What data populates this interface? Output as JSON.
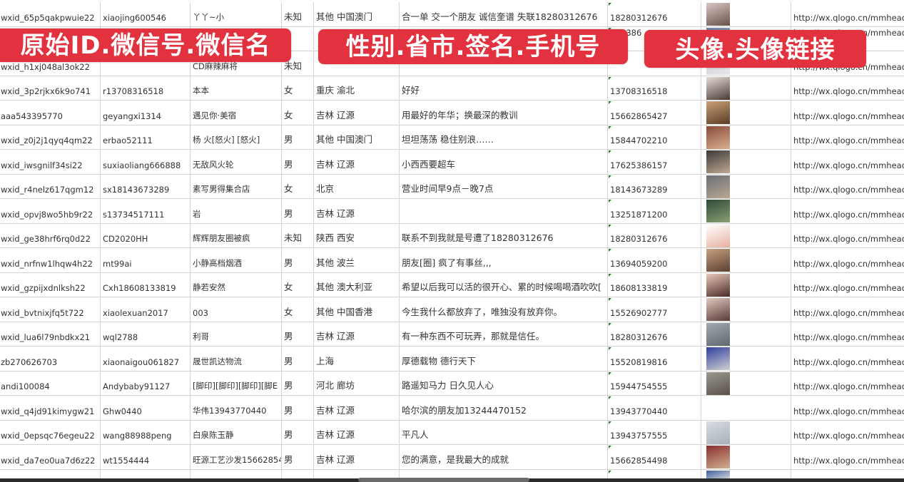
{
  "banners": {
    "ids": "原始ID.微信号.微信名",
    "profile": "性别.省市.签名.手机号",
    "avatar": "头像.头像链接"
  },
  "colors": {
    "banner": "#e2323f",
    "grid": "#d4d4d4"
  },
  "rows": [
    {
      "id": "wxid_65p5qakpwuie22",
      "wechat": "xiaojing600546",
      "name": "丫丫~小",
      "gender": "未知",
      "region": "其他 中国澳门",
      "sig": "合一单 交一个朋友 诚信奎谱 失联18280312676",
      "phone": "18280312676",
      "avatar": [
        "#d9c7c4",
        "#6b5048"
      ],
      "link": "http://wx.qlogo.cn/mmhead"
    },
    {
      "id": "",
      "wechat": "",
      "name": "",
      "gender": "",
      "region": "",
      "sig": "",
      "phone": "5386",
      "avatar": [
        "#6c7da8",
        "#c9cbd6"
      ],
      "link": "http://wx.qlogo.cn/mmhead"
    },
    {
      "id": "wxid_h1xj048al3ok22",
      "wechat": "",
      "name": "CD麻辣麻将",
      "gender": "未知",
      "region": "",
      "sig": "",
      "phone": "",
      "avatar": [
        "#c8c8d0",
        "#e6e6ea"
      ],
      "link": "http://wx.qlogo.cn/mmhead"
    },
    {
      "id": "wxid_3p2rjkx6k9o741",
      "wechat": "r13708316518",
      "name": "本本",
      "gender": "女",
      "region": "重庆 渝北",
      "sig": "好好",
      "phone": "13708316518",
      "avatar": [
        "#e6dcd6",
        "#4a3a34"
      ],
      "link": "http://wx.qlogo.cn/mmhead"
    },
    {
      "id": "aaa543395770",
      "wechat": "geyangxi1314",
      "name": "遇见你·美宿",
      "gender": "女",
      "region": "吉林 辽源",
      "sig": "用最好的年华；换最深的教训",
      "phone": "15662865427",
      "avatar": [
        "#c9a27c",
        "#5b3b22"
      ],
      "link": "http://wx.qlogo.cn/mmhead"
    },
    {
      "id": "wxid_z0j2j1qyq4qm22",
      "wechat": "erbao52111",
      "name": "杨 火[怒火] [怒火]",
      "gender": "男",
      "region": "其他 中国澳门",
      "sig": "坦坦荡荡 稳住别浪……",
      "phone": "15844702210",
      "avatar": [
        "#8a4a3a",
        "#d8b090"
      ],
      "link": "http://wx.qlogo.cn/mmhead"
    },
    {
      "id": "wxid_iwsgnilf34si22",
      "wechat": "suxiaoliang666888",
      "name": "无敌风火轮",
      "gender": "男",
      "region": "吉林 辽源",
      "sig": "小西西要超车",
      "phone": "17625386157",
      "avatar": [
        "#3a3a3a",
        "#c0a890"
      ],
      "link": "http://wx.qlogo.cn/mmhead"
    },
    {
      "id": "wxid_r4nelz617qgm12",
      "wechat": "sx18143673289",
      "name": "素写男得集合店",
      "gender": "女",
      "region": "北京",
      "sig": "营业时间早9点－晚7点",
      "phone": "18143673289",
      "avatar": [
        "#6a6f78",
        "#b8a890"
      ],
      "link": "http://wx.qlogo.cn/mmhead"
    },
    {
      "id": "wxid_opvj8wo5hb9r22",
      "wechat": "s13734517111",
      "name": "岩",
      "gender": "男",
      "region": "吉林 辽源",
      "sig": "",
      "phone": "13251871200",
      "avatar": [
        "#2f4a3a",
        "#8aa070"
      ],
      "link": "http://wx.qlogo.cn/mmhead"
    },
    {
      "id": "wxid_ge38hrf6rq0d22",
      "wechat": "CD2020HH",
      "name": "辉辉朋友圈被疯",
      "gender": "未知",
      "region": "陕西 西安",
      "sig": "联系不到我就是号遭了18280312676",
      "phone": "18280312676",
      "avatar": [
        "#ffffff",
        "#e8b0a0"
      ],
      "link": "http://wx.qlogo.cn/mmhead"
    },
    {
      "id": "wxid_nrfnw1lhqw4h22",
      "wechat": "mt99ai",
      "name": "小静高档烟酒",
      "gender": "男",
      "region": "其他 波兰",
      "sig": "朋友[圈] 疯了有事丝,,,",
      "phone": "13694059200",
      "avatar": [
        "#c9a080",
        "#5a4030"
      ],
      "link": "http://wx.qlogo.cn/mmhead"
    },
    {
      "id": "wxid_gzpijxdnlksh22",
      "wechat": "Cxh18608133819",
      "name": "静若安然",
      "gender": "女",
      "region": "其他 澳大利亚",
      "sig": "希望以后我可以活的很开心、累的时候喝喝酒吹吹[",
      "phone": "18608133819",
      "avatar": [
        "#e8c8b8",
        "#4a2a28"
      ],
      "link": "http://wx.qlogo.cn/mmhead"
    },
    {
      "id": "wxid_bvtnixjfq5t722",
      "wechat": "xiaolexuan2017",
      "name": "003",
      "gender": "女",
      "region": "其他 中国香港",
      "sig": "今生我什么都放弃了，唯独没有放弃你。",
      "phone": "15526902777",
      "avatar": [
        "#e0c8c0",
        "#5a3a36"
      ],
      "link": "http://wx.qlogo.cn/mmhead"
    },
    {
      "id": "wxid_lua6l79nbdkx21",
      "wechat": "wql2788",
      "name": "利哥",
      "gender": "男",
      "region": "吉林 辽源",
      "sig": "有一种东西不可玩弄，那就是信任。",
      "phone": "18280312676",
      "avatar": [
        "#a0a8b0",
        "#606870"
      ],
      "link": "http://wx.qlogo.cn/mmhead"
    },
    {
      "id": "zb270626703",
      "wechat": "xiaonaigou061827",
      "name": "晟世凯达物流",
      "gender": "男",
      "region": "上海",
      "sig": "厚德载物 德行天下",
      "phone": "15520819816",
      "avatar": [
        "#3040a0",
        "#d0d0d0"
      ],
      "link": "http://wx.qlogo.cn/mmhead"
    },
    {
      "id": "andi100084",
      "wechat": "Andybaby91127",
      "name": "[脚印][脚印][脚印][脚E",
      "gender": "男",
      "region": "河北 廊坊",
      "sig": "路遥知马力 日久见人心",
      "phone": "15944754555",
      "avatar": [
        "#9a9890",
        "#585048"
      ],
      "link": "http://wx.qlogo.cn/mmhead"
    },
    {
      "id": "wxid_q4jd91kimygw21",
      "wechat": "Ghw0440",
      "name": "华伟13943770440",
      "gender": "男",
      "region": "吉林 辽源",
      "sig": "哈尔滨的朋友加13244470152",
      "phone": "13943770440",
      "avatar": [
        "#ffffff",
        "#ffffff"
      ],
      "link": "http://wx.qlogo.cn/mmhead"
    },
    {
      "id": "wxid_0epsqc76egeu22",
      "wechat": "wang88988peng",
      "name": "白泉陈玉静",
      "gender": "男",
      "region": "吉林 辽源",
      "sig": "平凡人",
      "phone": "13943757555",
      "avatar": [
        "#d8dce4",
        "#a8b0b8"
      ],
      "link": "http://wx.qlogo.cn/mmhead"
    },
    {
      "id": "wxid_da7eo0ua7d6z22",
      "wechat": "wt1554444",
      "name": "旺源工艺沙发15662854",
      "gender": "男",
      "region": "吉林 辽源",
      "sig": "您的满意，是我最大的成就",
      "phone": "15662854498",
      "avatar": [
        "#8a3030",
        "#d0b090"
      ],
      "link": "http://wx.qlogo.cn/mmhead"
    },
    {
      "id": "",
      "wechat": "",
      "name": "",
      "gender": "",
      "region": "",
      "sig": "",
      "phone": "",
      "avatar": [
        "#4060a0",
        "#e0e0e0"
      ],
      "link": ""
    }
  ]
}
